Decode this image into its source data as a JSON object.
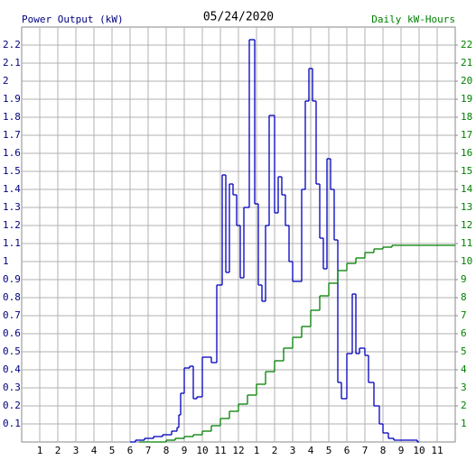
{
  "chart_data": {
    "type": "step",
    "title": "05/24/2020",
    "y_label": "Power Output (kW)",
    "y2_label": "Daily kW-Hours",
    "xlim": [
      0,
      24
    ],
    "xticks": [
      1,
      2,
      3,
      4,
      5,
      6,
      7,
      8,
      9,
      10,
      11,
      12,
      {
        "value": 13,
        "label": "1"
      },
      {
        "value": 14,
        "label": "2"
      },
      {
        "value": 15,
        "label": "3"
      },
      {
        "value": 16,
        "label": "4"
      },
      {
        "value": 17,
        "label": "5"
      },
      {
        "value": 18,
        "label": "6"
      },
      {
        "value": 19,
        "label": "7"
      },
      {
        "value": 20,
        "label": "8"
      },
      {
        "value": 21,
        "label": "9"
      },
      {
        "value": 22,
        "label": "10"
      },
      {
        "value": 23,
        "label": "11"
      }
    ],
    "ylim": [
      0,
      2.3
    ],
    "yticks": [
      0.1,
      0.2,
      0.3,
      0.4,
      0.5,
      0.6,
      0.7,
      0.8,
      0.9,
      1.0,
      1.1,
      1.2,
      1.3,
      1.4,
      1.5,
      1.6,
      1.7,
      1.8,
      1.9,
      2.0,
      2.1,
      2.2
    ],
    "y2lim": [
      0,
      23
    ],
    "y2ticks": [
      1,
      2,
      3,
      4,
      5,
      6,
      7,
      8,
      9,
      10,
      11,
      12,
      13,
      14,
      15,
      16,
      17,
      18,
      19,
      20,
      21,
      22
    ],
    "grid": true,
    "series": [
      {
        "color": "#0000c0",
        "axis": "y",
        "x": [
          6.0,
          6.3,
          6.8,
          7.3,
          7.8,
          8.3,
          8.6,
          8.7,
          8.8,
          9.0,
          9.3,
          9.5,
          9.7,
          10.0,
          10.5,
          10.8,
          11.1,
          11.3,
          11.5,
          11.7,
          11.9,
          12.1,
          12.3,
          12.6,
          12.9,
          13.1,
          13.3,
          13.5,
          13.7,
          14.0,
          14.2,
          14.4,
          14.6,
          14.8,
          15.0,
          15.5,
          15.7,
          15.9,
          16.1,
          16.3,
          16.5,
          16.7,
          16.9,
          17.1,
          17.3,
          17.5,
          17.7,
          18.0,
          18.3,
          18.5,
          18.7,
          19.0,
          19.2,
          19.5,
          19.8,
          20.0,
          20.3,
          20.6,
          21.9
        ],
        "values": [
          0,
          0.01,
          0.02,
          0.03,
          0.04,
          0.06,
          0.08,
          0.15,
          0.27,
          0.41,
          0.42,
          0.24,
          0.25,
          0.47,
          0.44,
          0.87,
          1.48,
          0.94,
          1.43,
          1.37,
          1.2,
          0.91,
          1.3,
          2.23,
          1.32,
          0.87,
          0.78,
          1.2,
          1.81,
          1.27,
          1.47,
          1.37,
          1.2,
          1.0,
          0.89,
          1.4,
          1.89,
          2.07,
          1.89,
          1.43,
          1.13,
          0.96,
          1.57,
          1.4,
          1.12,
          0.33,
          0.24,
          0.49,
          0.82,
          0.49,
          0.52,
          0.48,
          0.33,
          0.2,
          0.1,
          0.05,
          0.02,
          0.01,
          0
        ]
      },
      {
        "color": "#008000",
        "axis": "y2",
        "x": [
          6.5,
          8.0,
          8.5,
          9.0,
          9.5,
          10.0,
          10.5,
          11.0,
          11.5,
          12.0,
          12.5,
          13.0,
          13.5,
          14.0,
          14.5,
          15.0,
          15.5,
          16.0,
          16.5,
          17.0,
          17.5,
          18.0,
          18.5,
          19.0,
          19.5,
          20.0,
          20.5,
          24.0
        ],
        "values": [
          0,
          0.1,
          0.2,
          0.3,
          0.4,
          0.6,
          0.9,
          1.3,
          1.7,
          2.1,
          2.6,
          3.2,
          3.9,
          4.5,
          5.2,
          5.8,
          6.4,
          7.3,
          8.1,
          8.8,
          9.5,
          9.9,
          10.2,
          10.5,
          10.7,
          10.8,
          10.9,
          10.9
        ]
      }
    ]
  }
}
